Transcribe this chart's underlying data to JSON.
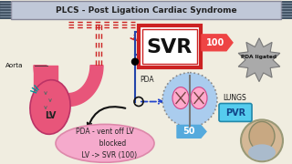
{
  "title": "PLCS - Post Ligation Cardiac Syndrome",
  "title_bg": "#c0c8d8",
  "title_border": "#888899",
  "bg_color": "#f0ede0",
  "svr_box_color": "#cc2222",
  "svr_text": "SVR",
  "svr_label": "100",
  "svr_arrow_color": "#ee4444",
  "pda_text": "PDA",
  "pda_ligated_text": "PDA ligated",
  "lungs_text": "LUNGS",
  "pvr_text": "PVR",
  "pvr_bg": "#55ccee",
  "pvr_border": "#2288aa",
  "lv_text": "LV",
  "aorta_text": "Aorta",
  "annotation_text": "PDA - vent off LV\n       blocked\n    LV -> SVR (100)",
  "annotation_bg": "#f5aacc",
  "note_50": "50",
  "heart_color": "#e8557a",
  "aorta_color": "#e8557a",
  "lungs_circle_color": "#aaccee",
  "lungs_dot_color": "#888888",
  "lung_lobe_color": "#ffaacc",
  "lung_lobe_border": "#cc4488",
  "dashed_red": "#cc2222",
  "dashed_blue": "#2244cc",
  "arrow_black": "#111111",
  "star_color": "#aaaaaa",
  "star_border": "#777777",
  "banner_left_color": "#445566",
  "junction_color": "#111111",
  "blue_line_color": "#2244aa",
  "teal_line_color": "#009999",
  "gray_arrow_color": "#666666"
}
